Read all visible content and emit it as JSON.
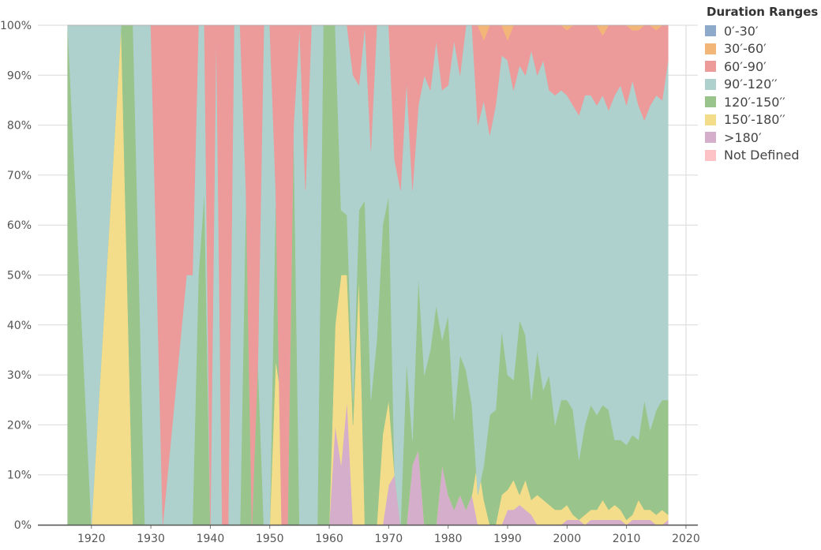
{
  "chart_data": {
    "type": "area",
    "stacked_percent": true,
    "title": "",
    "xlabel": "",
    "ylabel": "",
    "xlim": [
      1911,
      2022
    ],
    "ylim": [
      0,
      100
    ],
    "x_ticks": [
      1920,
      1930,
      1940,
      1950,
      1960,
      1970,
      1980,
      1990,
      2000,
      2010,
      2020
    ],
    "y_ticks": [
      0,
      10,
      20,
      30,
      40,
      50,
      60,
      70,
      80,
      90,
      100
    ],
    "x_tick_labels": [
      "1920",
      "1930",
      "1940",
      "1950",
      "1960",
      "1970",
      "1980",
      "1990",
      "2000",
      "2010",
      "2020"
    ],
    "y_tick_labels": [
      "0%",
      "10%",
      "20%",
      "30%",
      "40%",
      "50%",
      "60%",
      "70%",
      "80%",
      "90%",
      "100%"
    ],
    "grid": true,
    "legend_position": "right",
    "legend_title": "Duration Ranges",
    "series": [
      {
        "name": "0′-30′",
        "color": "#8eaacb"
      },
      {
        "name": "30′-60′",
        "color": "#f2b679"
      },
      {
        "name": "60′-90′",
        "color": "#ec9a9a"
      },
      {
        "name": "90′-120′′",
        "color": "#aed1cd"
      },
      {
        "name": "120′-150′′",
        "color": "#99c58c"
      },
      {
        "name": "150′-180′′",
        "color": "#f4dd8a"
      },
      {
        "name": ">180′",
        "color": "#d4aecb"
      },
      {
        "name": "Not Defined",
        "color": "#fdc2c6"
      }
    ],
    "cumulative_boundaries_note": "values are cumulative percent from bottom: p180 = >180, p150 = +150-180, p120 = +120-150, p90 = +90-120, p60 = +60-90, p30 = +30-60 (remaining to 100 is 0-30)",
    "years": [
      1916,
      1920,
      1925,
      1927,
      1929,
      1930,
      1932,
      1936,
      1937,
      1938,
      1939,
      1940,
      1941,
      1942,
      1943,
      1944,
      1945,
      1946,
      1947,
      1948,
      1949,
      1950,
      1951,
      1952,
      1953,
      1954,
      1955,
      1956,
      1957,
      1958,
      1959,
      1960,
      1961,
      1962,
      1963,
      1964,
      1965,
      1966,
      1967,
      1968,
      1969,
      1970,
      1971,
      1972,
      1973,
      1974,
      1975,
      1976,
      1977,
      1978,
      1979,
      1980,
      1981,
      1982,
      1983,
      1984,
      1985,
      1986,
      1987,
      1988,
      1989,
      1990,
      1991,
      1992,
      1993,
      1994,
      1995,
      1996,
      1997,
      1998,
      1999,
      2000,
      2001,
      2002,
      2003,
      2004,
      2005,
      2006,
      2007,
      2008,
      2009,
      2010,
      2011,
      2012,
      2013,
      2014,
      2015,
      2016,
      2017
    ],
    "p180": [
      0,
      0,
      0,
      0,
      0,
      0,
      0,
      0,
      0,
      0,
      0,
      0,
      0,
      0,
      0,
      0,
      0,
      0,
      0,
      0,
      0,
      0,
      0,
      0,
      0,
      0,
      0,
      0,
      0,
      0,
      0,
      0,
      20,
      12,
      25,
      0,
      0,
      0,
      0,
      0,
      0,
      8,
      10,
      0,
      0,
      12,
      15,
      0,
      0,
      0,
      12,
      6,
      3,
      6,
      3,
      6,
      0,
      0,
      0,
      0,
      0,
      3,
      3,
      4,
      3,
      2,
      0,
      0,
      0,
      0,
      0,
      1,
      1,
      1,
      0,
      1,
      1,
      1,
      1,
      1,
      1,
      0,
      1,
      1,
      1,
      1,
      0,
      0,
      1
    ],
    "p150": [
      0,
      0,
      100,
      0,
      0,
      0,
      0,
      0,
      0,
      0,
      0,
      0,
      0,
      0,
      0,
      0,
      0,
      0,
      0,
      0,
      0,
      0,
      33,
      25,
      0,
      0,
      0,
      0,
      0,
      0,
      0,
      0,
      40,
      50,
      50,
      20,
      50,
      0,
      0,
      0,
      18,
      25,
      10,
      0,
      0,
      12,
      15,
      0,
      0,
      0,
      12,
      6,
      3,
      6,
      3,
      6,
      13,
      5,
      0,
      0,
      6,
      7,
      9,
      6,
      9,
      5,
      6,
      5,
      4,
      3,
      3,
      4,
      2,
      1,
      2,
      3,
      3,
      5,
      3,
      4,
      3,
      1,
      2,
      5,
      3,
      3,
      2,
      3,
      2
    ],
    "p120": [
      100,
      0,
      100,
      100,
      0,
      0,
      0,
      0,
      0,
      50,
      67,
      0,
      0,
      0,
      0,
      0,
      0,
      67,
      0,
      33,
      0,
      0,
      67,
      25,
      20,
      80,
      0,
      0,
      0,
      0,
      100,
      100,
      100,
      63,
      62,
      25,
      63,
      65,
      25,
      37,
      60,
      66,
      10,
      0,
      33,
      17,
      50,
      30,
      35,
      44,
      37,
      42,
      21,
      34,
      31,
      24,
      6,
      12,
      22,
      23,
      39,
      30,
      29,
      41,
      38,
      25,
      35,
      27,
      30,
      20,
      25,
      25,
      23,
      13,
      20,
      24,
      22,
      24,
      23,
      17,
      17,
      16,
      18,
      17,
      25,
      19,
      23,
      25,
      25
    ],
    "p90": [
      100,
      100,
      100,
      100,
      100,
      100,
      0,
      50,
      50,
      100,
      100,
      0,
      100,
      0,
      0,
      100,
      100,
      67,
      0,
      33,
      100,
      100,
      67,
      0,
      0,
      80,
      100,
      67,
      100,
      100,
      100,
      100,
      100,
      100,
      100,
      90,
      88,
      100,
      75,
      100,
      100,
      100,
      73,
      67,
      89,
      67,
      84,
      90,
      87,
      97,
      87,
      88,
      97,
      90,
      100,
      100,
      80,
      85,
      78,
      84,
      94,
      93,
      87,
      92,
      90,
      95,
      90,
      93,
      87,
      86,
      87,
      86,
      84,
      82,
      86,
      86,
      84,
      86,
      83,
      86,
      88,
      84,
      89,
      84,
      81,
      84,
      86,
      85,
      93
    ],
    "p60": [
      100,
      100,
      100,
      100,
      100,
      100,
      100,
      100,
      100,
      100,
      100,
      100,
      100,
      100,
      100,
      100,
      100,
      100,
      100,
      100,
      100,
      100,
      100,
      100,
      100,
      100,
      100,
      100,
      100,
      100,
      100,
      100,
      100,
      100,
      100,
      100,
      100,
      100,
      100,
      100,
      100,
      100,
      100,
      100,
      100,
      100,
      100,
      100,
      100,
      100,
      100,
      100,
      100,
      100,
      100,
      100,
      100,
      97,
      100,
      100,
      100,
      97,
      100,
      100,
      100,
      100,
      100,
      100,
      100,
      100,
      100,
      99,
      100,
      100,
      100,
      100,
      100,
      98,
      100,
      100,
      100,
      100,
      99,
      99,
      100,
      100,
      99,
      100,
      100
    ],
    "p30": [
      100,
      100,
      100,
      100,
      100,
      100,
      100,
      100,
      100,
      100,
      100,
      100,
      100,
      100,
      100,
      100,
      100,
      100,
      100,
      100,
      100,
      100,
      100,
      100,
      100,
      100,
      100,
      100,
      100,
      100,
      100,
      100,
      100,
      100,
      100,
      100,
      100,
      100,
      100,
      100,
      100,
      100,
      100,
      100,
      100,
      100,
      100,
      100,
      100,
      100,
      100,
      100,
      100,
      100,
      100,
      100,
      100,
      100,
      100,
      100,
      100,
      100,
      100,
      100,
      100,
      100,
      100,
      100,
      100,
      100,
      100,
      100,
      100,
      100,
      100,
      100,
      100,
      100,
      100,
      100,
      100,
      100,
      100,
      100,
      100,
      100,
      100,
      100,
      100
    ]
  }
}
